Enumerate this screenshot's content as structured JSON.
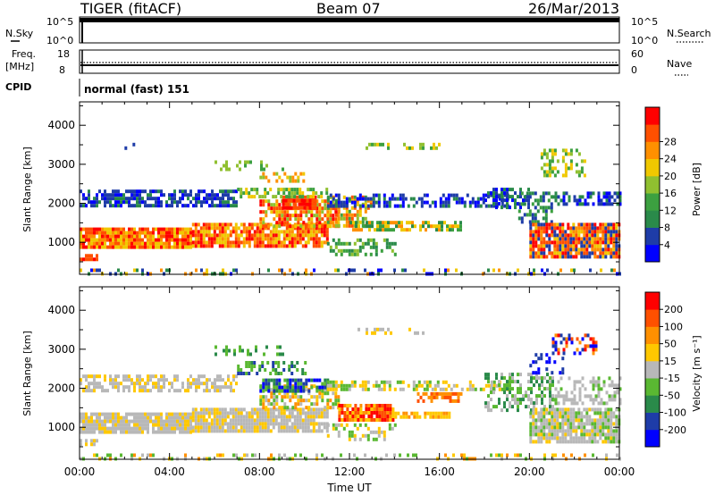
{
  "header": {
    "radar": "TIGER (fitACF)",
    "beam": "Beam 07",
    "date": "26/Mar/2013"
  },
  "panels": {
    "nsky_label": "N.Sky",
    "nsearch_label": "N.Search",
    "freq_label": "Freq.",
    "freq_unit": "[MHz]",
    "nave_label": "Nave",
    "cpid_label": "CPID",
    "cpid_value": "normal (fast) 151",
    "nsky_ticks": [
      "10^5",
      "10^0"
    ],
    "nsearch_ticks": [
      "10^5",
      "10^0"
    ],
    "freq_ticks": [
      "18",
      "8"
    ],
    "nave_ticks": [
      "60",
      "0"
    ]
  },
  "chart_data": [
    {
      "type": "heatmap",
      "quantity": "power",
      "ylabel": "Slant Range [km]",
      "xlim": [
        0,
        24
      ],
      "ylim": [
        180,
        4600
      ],
      "yticks": [
        1000,
        2000,
        3000,
        4000
      ],
      "colorbar": {
        "label": "Power [dB]",
        "ticks": [
          "4",
          "8",
          "12",
          "16",
          "20",
          "24",
          "28"
        ],
        "colors": [
          "#0000ff",
          "#1e3ca8",
          "#2a8a4a",
          "#3ca040",
          "#90c030",
          "#f0c800",
          "#ff9000",
          "#ff5000",
          "#ff0000"
        ]
      },
      "bands": [
        {
          "t": [
            0,
            24
          ],
          "r": [
            200,
            330
          ],
          "density": 0.25,
          "c": [
            0,
            1,
            2,
            5,
            6
          ]
        },
        {
          "t": [
            0,
            0.8
          ],
          "r": [
            520,
            700
          ],
          "density": 0.9,
          "c": [
            7,
            8
          ]
        },
        {
          "t": [
            0,
            5
          ],
          "r": [
            850,
            1380
          ],
          "density": 0.95,
          "c": [
            6,
            7,
            8,
            5
          ]
        },
        {
          "t": [
            5,
            11
          ],
          "r": [
            950,
            1500
          ],
          "density": 0.9,
          "c": [
            6,
            7,
            8,
            5
          ]
        },
        {
          "t": [
            8,
            11.5
          ],
          "r": [
            1450,
            2100
          ],
          "density": 0.7,
          "c": [
            5,
            6,
            7,
            8,
            4
          ]
        },
        {
          "t": [
            9,
            10.5
          ],
          "r": [
            1850,
            2200
          ],
          "density": 0.9,
          "c": [
            8,
            7
          ]
        },
        {
          "t": [
            0,
            7
          ],
          "r": [
            1950,
            2350
          ],
          "density": 0.7,
          "c": [
            0,
            1,
            1,
            2
          ]
        },
        {
          "t": [
            7,
            11
          ],
          "r": [
            2200,
            2400
          ],
          "density": 0.6,
          "c": [
            3,
            4,
            5
          ]
        },
        {
          "t": [
            8,
            10
          ],
          "r": [
            2550,
            2800
          ],
          "density": 0.5,
          "c": [
            5,
            6,
            4
          ]
        },
        {
          "t": [
            6,
            9
          ],
          "r": [
            2900,
            3100
          ],
          "density": 0.3,
          "c": [
            3,
            4
          ]
        },
        {
          "t": [
            11,
            13
          ],
          "r": [
            1400,
            2200
          ],
          "density": 0.6,
          "c": [
            3,
            4,
            5,
            6,
            7
          ]
        },
        {
          "t": [
            11,
            19
          ],
          "r": [
            1950,
            2250
          ],
          "density": 0.55,
          "c": [
            0,
            1,
            1,
            2
          ]
        },
        {
          "t": [
            12,
            17
          ],
          "r": [
            1300,
            1550
          ],
          "density": 0.7,
          "c": [
            2,
            3,
            5,
            6
          ]
        },
        {
          "t": [
            11,
            14
          ],
          "r": [
            700,
            1100
          ],
          "density": 0.45,
          "c": [
            2,
            3,
            4
          ]
        },
        {
          "t": [
            12,
            16
          ],
          "r": [
            3400,
            3550
          ],
          "density": 0.25,
          "c": [
            3,
            4,
            5
          ]
        },
        {
          "t": [
            2,
            3
          ],
          "r": [
            3400,
            3550
          ],
          "density": 0.25,
          "c": [
            1,
            2
          ]
        },
        {
          "t": [
            18,
            20
          ],
          "r": [
            1900,
            2400
          ],
          "density": 0.5,
          "c": [
            0,
            1,
            2
          ]
        },
        {
          "t": [
            19.5,
            21
          ],
          "r": [
            1500,
            2300
          ],
          "density": 0.4,
          "c": [
            2,
            3,
            1
          ]
        },
        {
          "t": [
            20,
            24
          ],
          "r": [
            650,
            1500
          ],
          "density": 0.9,
          "c": [
            6,
            7,
            8,
            5,
            1
          ]
        },
        {
          "t": [
            20.5,
            22.5
          ],
          "r": [
            2700,
            3400
          ],
          "density": 0.4,
          "c": [
            3,
            4,
            5
          ]
        },
        {
          "t": [
            21,
            24
          ],
          "r": [
            1950,
            2300
          ],
          "density": 0.45,
          "c": [
            0,
            1,
            2
          ]
        }
      ]
    },
    {
      "type": "heatmap",
      "quantity": "velocity",
      "xlabel": "Time UT",
      "ylabel": "Slant Range [km]",
      "xlim": [
        0,
        24
      ],
      "ylim": [
        180,
        4600
      ],
      "xticks": [
        "00:00",
        "04:00",
        "08:00",
        "12:00",
        "16:00",
        "20:00",
        "00:00"
      ],
      "yticks": [
        1000,
        2000,
        3000,
        4000
      ],
      "colorbar": {
        "label": "Velocity [m s⁻¹]",
        "ticks": [
          "200",
          "100",
          "50",
          "15",
          "-15",
          "-50",
          "-100",
          "-200"
        ],
        "colors": [
          "#0000ff",
          "#1e3ca8",
          "#2a8a4a",
          "#5ab832",
          "#b8b8b8",
          "#ffc800",
          "#ff9000",
          "#ff5000",
          "#ff0000"
        ]
      },
      "bands": [
        {
          "t": [
            0,
            24
          ],
          "r": [
            200,
            330
          ],
          "density": 0.25,
          "c": [
            4,
            3,
            5,
            6
          ]
        },
        {
          "t": [
            0,
            0.8
          ],
          "r": [
            520,
            700
          ],
          "density": 0.6,
          "c": [
            4,
            5
          ]
        },
        {
          "t": [
            0,
            5
          ],
          "r": [
            850,
            1380
          ],
          "density": 0.9,
          "c": [
            4,
            4,
            4,
            5
          ]
        },
        {
          "t": [
            5,
            11
          ],
          "r": [
            950,
            1500
          ],
          "density": 0.9,
          "c": [
            4,
            4,
            4,
            5
          ]
        },
        {
          "t": [
            0,
            7
          ],
          "r": [
            1950,
            2350
          ],
          "density": 0.55,
          "c": [
            4,
            4,
            5
          ]
        },
        {
          "t": [
            8,
            11.5
          ],
          "r": [
            1500,
            2100
          ],
          "density": 0.6,
          "c": [
            4,
            5,
            6,
            3
          ]
        },
        {
          "t": [
            8,
            11
          ],
          "r": [
            1900,
            2250
          ],
          "density": 0.75,
          "c": [
            0,
            1,
            2,
            3
          ]
        },
        {
          "t": [
            7,
            10
          ],
          "r": [
            2400,
            2700
          ],
          "density": 0.45,
          "c": [
            2,
            3,
            1
          ]
        },
        {
          "t": [
            6,
            9
          ],
          "r": [
            2900,
            3100
          ],
          "density": 0.3,
          "c": [
            3,
            2
          ]
        },
        {
          "t": [
            11.5,
            14
          ],
          "r": [
            1150,
            1600
          ],
          "density": 0.85,
          "c": [
            5,
            6,
            7,
            8
          ]
        },
        {
          "t": [
            14,
            16.5
          ],
          "r": [
            1250,
            1400
          ],
          "density": 0.8,
          "c": [
            5,
            5,
            6
          ]
        },
        {
          "t": [
            15,
            17
          ],
          "r": [
            1700,
            1900
          ],
          "density": 0.7,
          "c": [
            6,
            7
          ]
        },
        {
          "t": [
            11,
            19
          ],
          "r": [
            1950,
            2200
          ],
          "density": 0.45,
          "c": [
            4,
            5,
            3
          ]
        },
        {
          "t": [
            11,
            14
          ],
          "r": [
            700,
            1100
          ],
          "density": 0.4,
          "c": [
            4,
            3,
            5
          ]
        },
        {
          "t": [
            12,
            16
          ],
          "r": [
            3400,
            3550
          ],
          "density": 0.2,
          "c": [
            4,
            5
          ]
        },
        {
          "t": [
            18,
            21
          ],
          "r": [
            1400,
            2400
          ],
          "density": 0.45,
          "c": [
            3,
            4,
            2
          ]
        },
        {
          "t": [
            20,
            24
          ],
          "r": [
            650,
            1500
          ],
          "density": 0.85,
          "c": [
            4,
            4,
            4,
            3,
            5
          ]
        },
        {
          "t": [
            21,
            23
          ],
          "r": [
            2900,
            3400
          ],
          "density": 0.45,
          "c": [
            6,
            7,
            8,
            0,
            1
          ]
        },
        {
          "t": [
            20,
            21.5
          ],
          "r": [
            2400,
            2900
          ],
          "density": 0.3,
          "c": [
            0,
            1
          ]
        },
        {
          "t": [
            21,
            24
          ],
          "r": [
            1600,
            2300
          ],
          "density": 0.45,
          "c": [
            4,
            4,
            3
          ]
        }
      ]
    }
  ]
}
